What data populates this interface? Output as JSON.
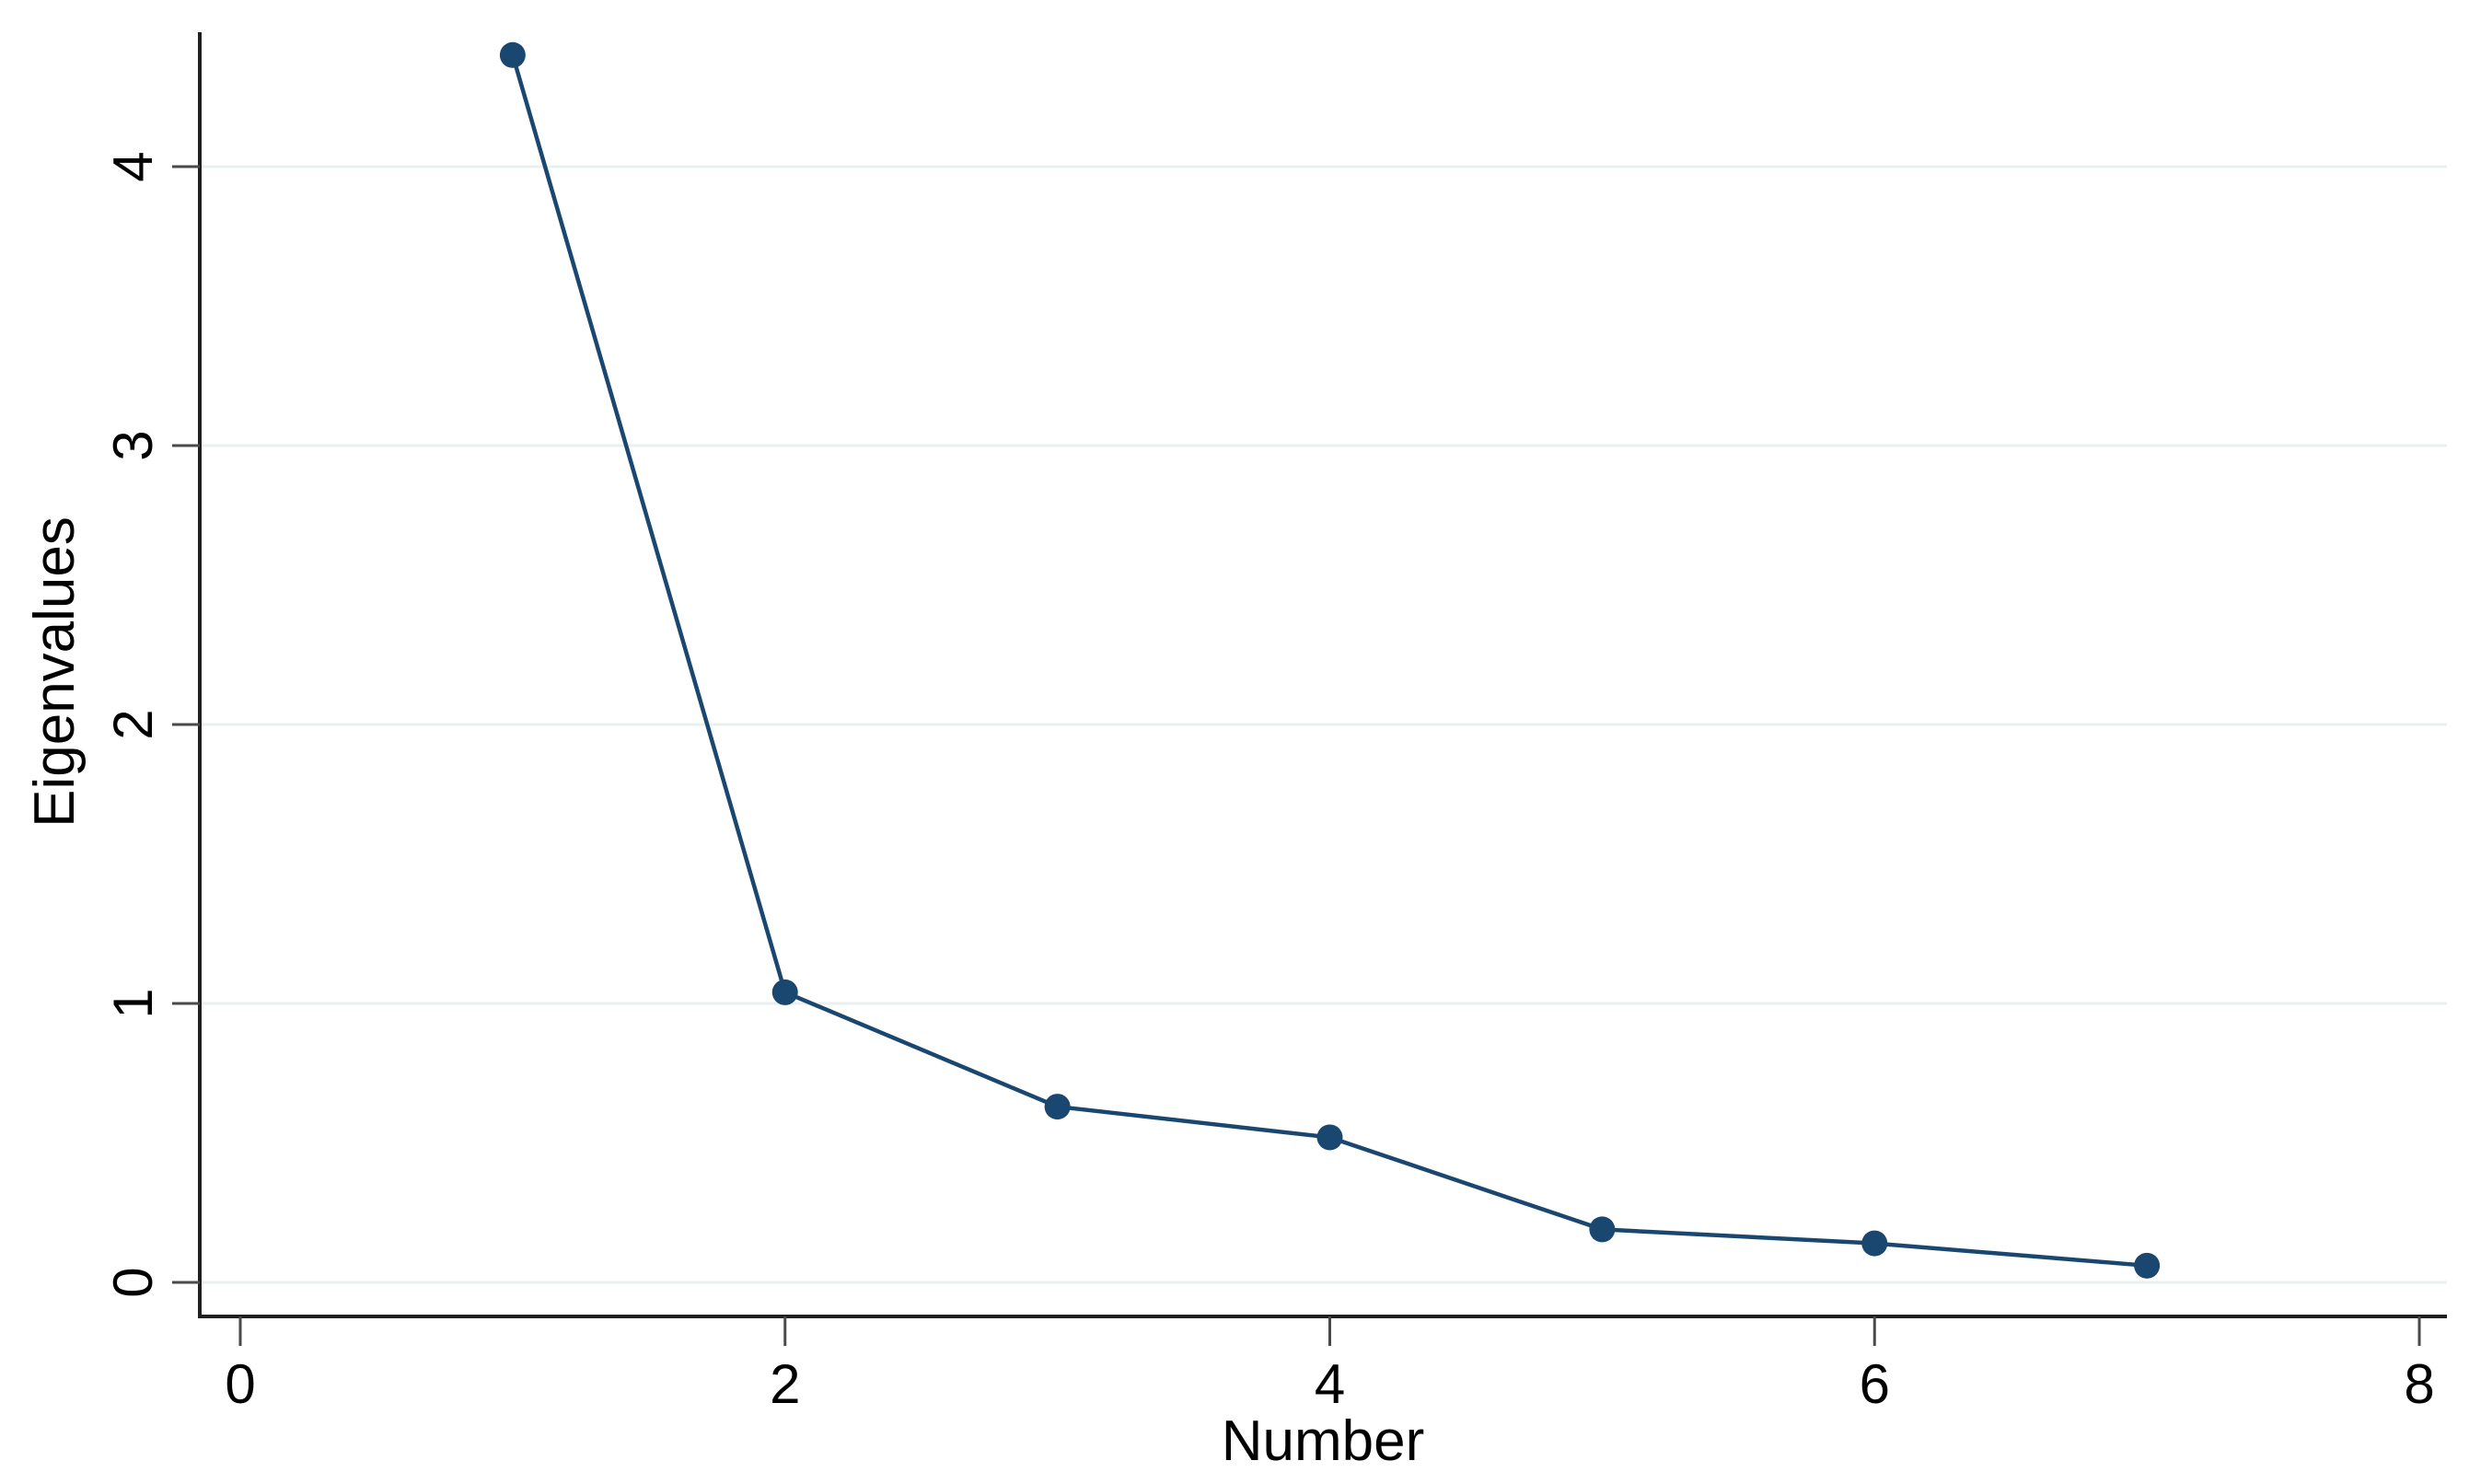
{
  "figure": {
    "background": "#ffffff",
    "description": "Scree plot of eigenvalues after factor/principal component analysis"
  },
  "chart_data": {
    "type": "line",
    "title": "",
    "xlabel": "Number",
    "ylabel": "Eigenvalues",
    "x": [
      1,
      2,
      3,
      4,
      5,
      6,
      7
    ],
    "series": [
      {
        "name": "Eigenvalues",
        "values": [
          4.4,
          1.04,
          0.63,
          0.52,
          0.19,
          0.14,
          0.06
        ]
      }
    ],
    "xlim": [
      0,
      8.1
    ],
    "ylim": [
      -0.12,
      4.6
    ],
    "xticks": [
      0,
      2,
      4,
      6,
      8
    ],
    "yticks": [
      0,
      1,
      2,
      3,
      4
    ],
    "grid": "horizontal",
    "legend": "none",
    "marker": "circle",
    "y_tick_label_rotation": 90,
    "colors": {
      "line": "#1a476f",
      "marker": "#1a476f",
      "grid": "#e9f0f0",
      "axis": "#1f1f1f",
      "tick": "#4a4a4a",
      "text": "#000000",
      "background": "#ffffff"
    }
  }
}
